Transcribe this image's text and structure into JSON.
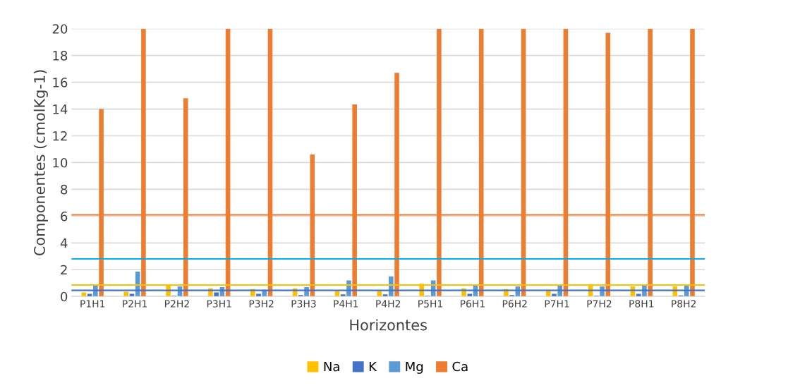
{
  "chart_data": {
    "type": "bar",
    "xlabel": "Horizontes",
    "ylabel": "Componentes (cmolKg-1)",
    "categories": [
      "P1H1",
      "P2H1",
      "P2H2",
      "P3H1",
      "P3H2",
      "P3H3",
      "P4H1",
      "P4H2",
      "P5H1",
      "P6H1",
      "P6H2",
      "P7H1",
      "P7H2",
      "P8H1",
      "P8H2"
    ],
    "series": [
      {
        "name": "Na",
        "color": "#ffc000",
        "values": [
          0.3,
          0.35,
          0.9,
          0.6,
          0.55,
          0.6,
          0.4,
          0.4,
          0.95,
          0.6,
          0.55,
          0.5,
          0.9,
          0.75,
          0.75
        ]
      },
      {
        "name": "K",
        "color": "#4472c4",
        "values": [
          0.2,
          0.2,
          0.05,
          0.3,
          0.2,
          0.1,
          0.15,
          0.15,
          0.05,
          0.2,
          0.1,
          0.2,
          0.05,
          0.2,
          0.08
        ]
      },
      {
        "name": "Mg",
        "color": "#5b9bd5",
        "values": [
          0.8,
          1.85,
          0.75,
          0.7,
          0.5,
          0.7,
          1.2,
          1.5,
          1.2,
          0.8,
          0.75,
          0.8,
          0.75,
          0.9,
          0.9
        ]
      },
      {
        "name": "Ca",
        "color": "#ed7d31",
        "values": [
          14.0,
          20,
          14.8,
          20,
          20,
          10.6,
          14.35,
          16.7,
          20,
          20,
          20,
          20,
          19.7,
          20,
          20
        ]
      }
    ],
    "ylim": [
      0,
      20
    ],
    "yticks": [
      0,
      2,
      4,
      6,
      8,
      10,
      12,
      14,
      16,
      18,
      20
    ],
    "grid": "y",
    "legend": "bottom",
    "ref_lines": [
      {
        "axis": "y",
        "value": 6.1,
        "color": "#ed7d31"
      },
      {
        "axis": "y",
        "value": 2.8,
        "color": "#00b0f0"
      },
      {
        "axis": "y",
        "value": 0.85,
        "color": "#ffc000"
      },
      {
        "axis": "y",
        "value": 0.45,
        "color": "#4472c4"
      }
    ]
  }
}
